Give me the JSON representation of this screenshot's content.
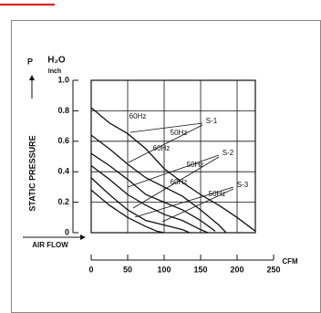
{
  "chart_data": {
    "type": "line",
    "y_label_top": "P",
    "y_unit": "H₂O",
    "y_unit_sub": "Inch",
    "y_label": "STATIC PRESSURE",
    "x_label": "AIR FLOW",
    "x_unit": "CFM",
    "xlim": [
      0,
      225
    ],
    "xticks": [
      0,
      50,
      100,
      150,
      200,
      250
    ],
    "ylim": [
      0,
      1
    ],
    "yticks": [
      0,
      0.2,
      0.4,
      0.6,
      0.8,
      {
        "value": 1,
        "label": "1.0"
      }
    ],
    "grid": true,
    "color": "#111111",
    "series": [
      {
        "x": [
          0,
          25,
          50,
          75,
          100,
          125,
          150,
          175,
          200,
          225
        ],
        "values": [
          0.82,
          0.72,
          0.65,
          0.55,
          0.42,
          0.33,
          0.25,
          0.18,
          0.1,
          0.01
        ]
      },
      {
        "x": [
          0,
          25,
          50,
          75,
          100,
          125,
          150,
          175,
          185
        ],
        "values": [
          0.64,
          0.55,
          0.45,
          0.36,
          0.3,
          0.24,
          0.15,
          0.05,
          0
        ]
      },
      {
        "x": [
          0,
          25,
          50,
          75,
          100,
          125,
          150,
          170
        ],
        "values": [
          0.52,
          0.44,
          0.35,
          0.25,
          0.2,
          0.15,
          0.08,
          0.01
        ]
      },
      {
        "x": [
          0,
          25,
          50,
          75,
          100,
          125,
          150,
          160
        ],
        "values": [
          0.44,
          0.35,
          0.25,
          0.18,
          0.12,
          0.08,
          0.02,
          0
        ]
      },
      {
        "x": [
          0,
          25,
          50,
          75,
          100,
          125,
          135
        ],
        "values": [
          0.36,
          0.25,
          0.15,
          0.08,
          0.05,
          0.02,
          0
        ]
      },
      {
        "x": [
          0,
          25,
          50,
          75,
          90,
          100
        ],
        "values": [
          0.28,
          0.18,
          0.1,
          0.04,
          0.01,
          0
        ]
      }
    ],
    "annotations": [
      "S-1",
      "S-2",
      "S-3",
      "60Hz",
      "50Hz",
      "60Hz",
      "50Hz",
      "60Hz",
      "50Hz"
    ]
  }
}
